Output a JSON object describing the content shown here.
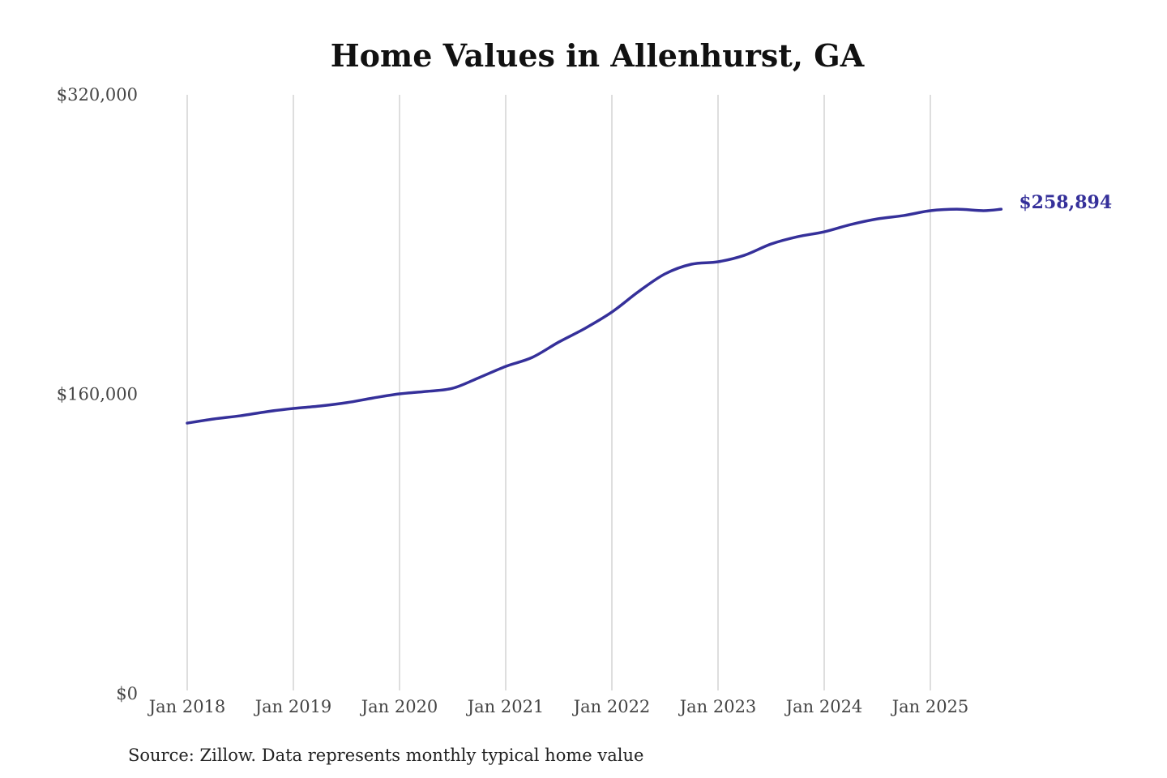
{
  "chart_data": {
    "type": "line",
    "title": "Home Values in Allenhurst, GA",
    "xlabel": "",
    "ylabel": "",
    "source": "Source: Zillow. Data represents monthly typical home value",
    "ylim": [
      0,
      320000
    ],
    "y_ticks": [
      {
        "value": 0,
        "label": "$0"
      },
      {
        "value": 160000,
        "label": "$160,000"
      },
      {
        "value": 320000,
        "label": "$320,000"
      }
    ],
    "x_ticks": [
      {
        "value": "2018-01",
        "label": "Jan 2018"
      },
      {
        "value": "2019-01",
        "label": "Jan 2019"
      },
      {
        "value": "2020-01",
        "label": "Jan 2020"
      },
      {
        "value": "2021-01",
        "label": "Jan 2021"
      },
      {
        "value": "2022-01",
        "label": "Jan 2022"
      },
      {
        "value": "2023-01",
        "label": "Jan 2023"
      },
      {
        "value": "2024-01",
        "label": "Jan 2024"
      },
      {
        "value": "2025-01",
        "label": "Jan 2025"
      }
    ],
    "grid": "vertical",
    "line_color": "#35309a",
    "end_label": "$258,894",
    "series": [
      {
        "x": [
          "2018-01",
          "2018-04",
          "2018-07",
          "2018-10",
          "2019-01",
          "2019-04",
          "2019-07",
          "2019-10",
          "2020-01",
          "2020-04",
          "2020-07",
          "2020-10",
          "2021-01",
          "2021-04",
          "2021-07",
          "2021-10",
          "2022-01",
          "2022-04",
          "2022-07",
          "2022-10",
          "2023-01",
          "2023-04",
          "2023-07",
          "2023-10",
          "2024-01",
          "2024-04",
          "2024-07",
          "2024-10",
          "2025-01",
          "2025-04",
          "2025-07",
          "2025-09"
        ],
        "values": [
          144600,
          146800,
          148500,
          150700,
          152400,
          153700,
          155500,
          158000,
          160200,
          161500,
          163200,
          168900,
          174900,
          179700,
          187900,
          195300,
          203900,
          214800,
          224300,
          229500,
          230800,
          234300,
          240300,
          244200,
          246800,
          250700,
          253700,
          255500,
          258100,
          258900,
          258100,
          258894
        ]
      }
    ]
  }
}
